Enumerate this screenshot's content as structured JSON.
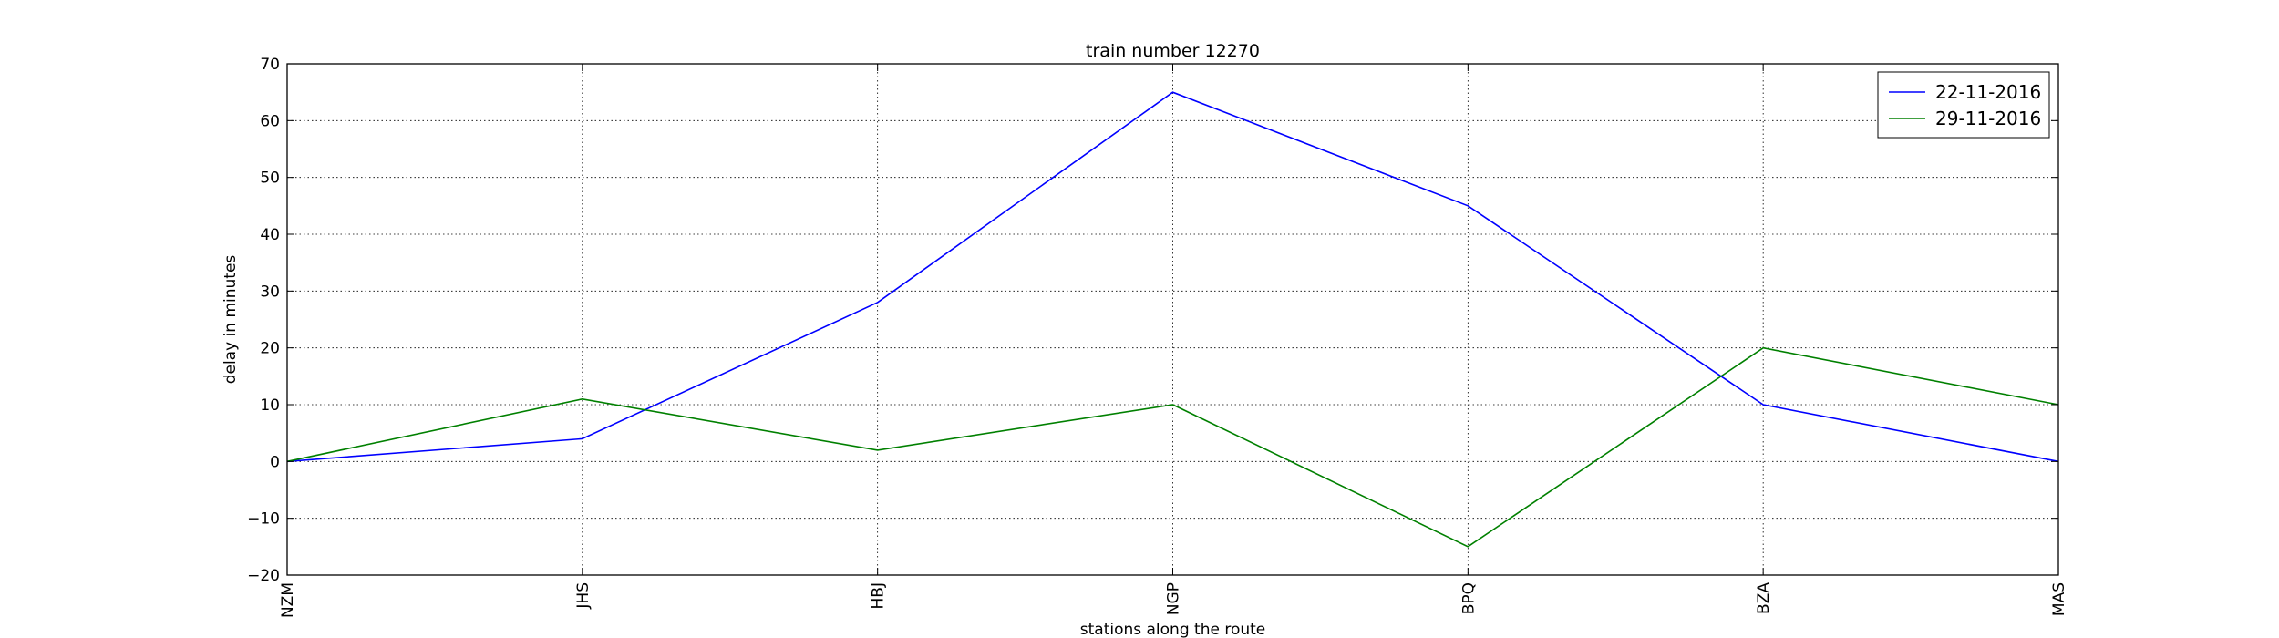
{
  "chart_data": {
    "type": "line",
    "title": "train number 12270",
    "xlabel": "stations along the route",
    "ylabel": "delay in minutes",
    "categories": [
      "NZM",
      "JHS",
      "HBJ",
      "NGP",
      "BPQ",
      "BZA",
      "MAS"
    ],
    "ylim": [
      -20,
      70
    ],
    "yticks": [
      -20,
      -10,
      0,
      10,
      20,
      30,
      40,
      50,
      60,
      70
    ],
    "grid": true,
    "legend_position": "top-right",
    "series": [
      {
        "name": "22-11-2016",
        "color": "#0000ff",
        "values": [
          0,
          4,
          28,
          65,
          45,
          10,
          0
        ]
      },
      {
        "name": "29-11-2016",
        "color": "#008000",
        "values": [
          0,
          11,
          2,
          10,
          -15,
          20,
          10
        ]
      }
    ]
  }
}
